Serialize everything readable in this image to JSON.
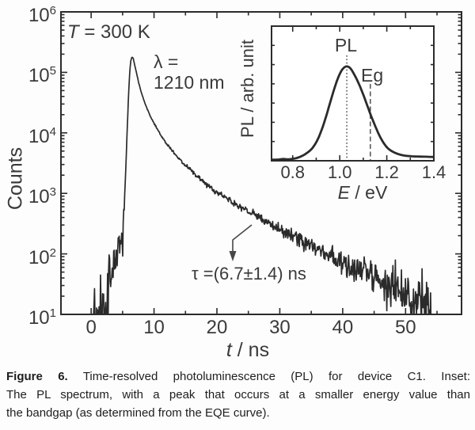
{
  "colors": {
    "ink": "#2b2b2b",
    "label": "#3a3a3a",
    "guide": "#5a5a5a",
    "caption_text": "#1e1e1e",
    "background": "#fdfdfd"
  },
  "chart_data": [
    {
      "id": "main-decay",
      "type": "line",
      "title": "",
      "xlabel": {
        "sym": "t",
        "rest": " / ns"
      },
      "ylabel": "Counts",
      "xscale": "linear",
      "yscale": "log",
      "xlim": [
        -4.8,
        58.9
      ],
      "ylim": [
        10,
        1000000
      ],
      "x_ticks": [
        0,
        10,
        20,
        30,
        40,
        50
      ],
      "x_minor_ticks": [
        5,
        15,
        25,
        35,
        45,
        55
      ],
      "y_tick_exponents": [
        6,
        5,
        4,
        3,
        2,
        1
      ],
      "grid": false,
      "legend": "none",
      "annotations": {
        "temperature": {
          "sym": "T",
          "rest": " = 300 K"
        },
        "wavelength_line1": "λ =",
        "wavelength_line2": "1210 nm",
        "lifetime": "τ =(6.7±1.4) ns"
      },
      "series": [
        {
          "name": "PL decay at λ = 1210 nm",
          "anchors_t_counts": [
            [
              0.3,
              9
            ],
            [
              0.8,
              10
            ],
            [
              1.2,
              9
            ],
            [
              1.6,
              12
            ],
            [
              2.0,
              10
            ],
            [
              2.4,
              14
            ],
            [
              2.7,
              30
            ],
            [
              2.9,
              90
            ],
            [
              3.0,
              25
            ],
            [
              3.2,
              55
            ],
            [
              3.4,
              35
            ],
            [
              3.6,
              95
            ],
            [
              3.8,
              70
            ],
            [
              4.0,
              140
            ],
            [
              4.2,
              105
            ],
            [
              4.4,
              170
            ],
            [
              4.6,
              135
            ],
            [
              4.8,
              150
            ],
            [
              4.95,
              125
            ],
            [
              5.1,
              260
            ],
            [
              5.3,
              700
            ],
            [
              5.5,
              2500
            ],
            [
              5.7,
              9000
            ],
            [
              5.9,
              32000
            ],
            [
              6.1,
              90000
            ],
            [
              6.3,
              155000
            ],
            [
              6.5,
              180000
            ],
            [
              6.7,
              170000
            ],
            [
              6.9,
              135000
            ],
            [
              7.2,
              100000
            ],
            [
              7.5,
              72000
            ],
            [
              8.0,
              46000
            ],
            [
              8.5,
              32000
            ],
            [
              9.0,
              23500
            ],
            [
              9.5,
              18000
            ],
            [
              10,
              14500
            ],
            [
              11,
              9500
            ],
            [
              12,
              6600
            ],
            [
              13,
              4900
            ],
            [
              14,
              3700
            ],
            [
              15,
              2900
            ],
            [
              16,
              2300
            ],
            [
              17,
              1850
            ],
            [
              18,
              1500
            ],
            [
              19,
              1250
            ],
            [
              20,
              1050
            ],
            [
              21,
              900
            ],
            [
              22,
              770
            ],
            [
              23,
              660
            ],
            [
              24,
              570
            ],
            [
              25,
              500
            ],
            [
              26,
              435
            ],
            [
              27,
              380
            ],
            [
              28,
              330
            ],
            [
              29,
              290
            ],
            [
              30,
              255
            ],
            [
              31,
              225
            ],
            [
              32,
              198
            ],
            [
              33,
              175
            ],
            [
              34,
              154
            ],
            [
              35,
              136
            ],
            [
              36,
              120
            ],
            [
              37,
              106
            ],
            [
              38,
              94
            ],
            [
              39,
              83
            ],
            [
              40,
              73
            ],
            [
              41,
              65
            ],
            [
              42,
              57
            ],
            [
              43,
              51
            ],
            [
              44,
              45
            ],
            [
              45,
              40
            ],
            [
              46,
              36
            ],
            [
              47,
              31
            ],
            [
              48,
              28
            ],
            [
              49,
              25
            ],
            [
              50,
              22
            ],
            [
              51,
              20
            ],
            [
              52,
              18
            ],
            [
              53,
              16
            ],
            [
              54,
              15
            ],
            [
              54.2,
              14
            ]
          ]
        }
      ]
    },
    {
      "id": "inset-spectrum",
      "type": "line",
      "title": "",
      "xlabel": {
        "sym": "E",
        "rest": " / eV"
      },
      "ylabel": "PL / arb. unit",
      "xscale": "linear",
      "yscale": "linear",
      "xlim": [
        0.71,
        1.4
      ],
      "ylim": [
        0,
        1.42
      ],
      "x_ticks": [
        0.8,
        1.0,
        1.2,
        1.4
      ],
      "x_minor_ticks": [
        0.9,
        1.1,
        1.3
      ],
      "grid": false,
      "legend": "none",
      "markers": {
        "peak": {
          "x": 1.03,
          "label": "PL",
          "line_style": "dotted"
        },
        "bandgap": {
          "x": 1.13,
          "label": "Eg",
          "line_style": "dashed"
        }
      },
      "series": [
        {
          "name": "PL spectrum",
          "points_E_intensity": [
            [
              0.71,
              0.012
            ],
            [
              0.74,
              0.012
            ],
            [
              0.76,
              0.02
            ],
            [
              0.78,
              0.014
            ],
            [
              0.8,
              0.02
            ],
            [
              0.82,
              0.03
            ],
            [
              0.84,
              0.05
            ],
            [
              0.86,
              0.08
            ],
            [
              0.88,
              0.12
            ],
            [
              0.9,
              0.19
            ],
            [
              0.92,
              0.3
            ],
            [
              0.94,
              0.45
            ],
            [
              0.96,
              0.62
            ],
            [
              0.98,
              0.79
            ],
            [
              1.0,
              0.92
            ],
            [
              1.015,
              0.98
            ],
            [
              1.03,
              1.0
            ],
            [
              1.045,
              0.98
            ],
            [
              1.06,
              0.92
            ],
            [
              1.08,
              0.82
            ],
            [
              1.1,
              0.7
            ],
            [
              1.12,
              0.56
            ],
            [
              1.14,
              0.43
            ],
            [
              1.16,
              0.31
            ],
            [
              1.18,
              0.21
            ],
            [
              1.2,
              0.14
            ],
            [
              1.22,
              0.1
            ],
            [
              1.25,
              0.068
            ],
            [
              1.28,
              0.052
            ],
            [
              1.31,
              0.046
            ],
            [
              1.34,
              0.044
            ],
            [
              1.37,
              0.042
            ],
            [
              1.4,
              0.04
            ]
          ]
        }
      ]
    }
  ],
  "caption": {
    "label": "Figure 6.",
    "line1_rest": " Time-resolved photoluminescence (PL) for device C1. Inset:",
    "line2": "The PL spectrum, with a peak that occurs at a smaller energy value than",
    "line3": "the bandgap (as determined from the EQE curve)."
  }
}
